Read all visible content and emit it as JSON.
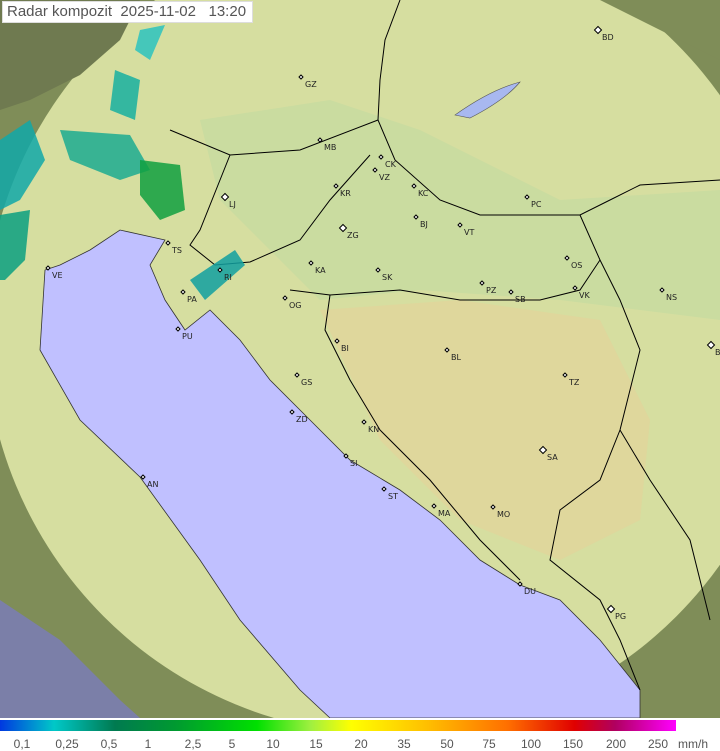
{
  "title": "Radar kompozit  2025-11-02   13:20",
  "colors": {
    "sea": "#c0c0ff",
    "land": "#d8e0a0",
    "outside_coverage": "#8a9a60",
    "borders": "#000000"
  },
  "legend": {
    "ticks": [
      "0,1",
      "0,25",
      "0,5",
      "1",
      "2,5",
      "5",
      "10",
      "15",
      "20",
      "35",
      "50",
      "75",
      "100",
      "150",
      "200",
      "250"
    ],
    "unit": "mm/h"
  },
  "cities": [
    "GZ",
    "BD",
    "MB",
    "CK",
    "VZ",
    "KR",
    "KC",
    "LJ",
    "PC",
    "ZG",
    "BJ",
    "VT",
    "TS",
    "KA",
    "SK",
    "OS",
    "VE",
    "RI",
    "PZ",
    "SB",
    "VK",
    "NS",
    "PA",
    "OG",
    "PU",
    "BI",
    "BL",
    "BG",
    "TZ",
    "GS",
    "ZD",
    "KN",
    "SA",
    "SI",
    "AN",
    "ST",
    "MA",
    "MO",
    "DU",
    "PG"
  ]
}
